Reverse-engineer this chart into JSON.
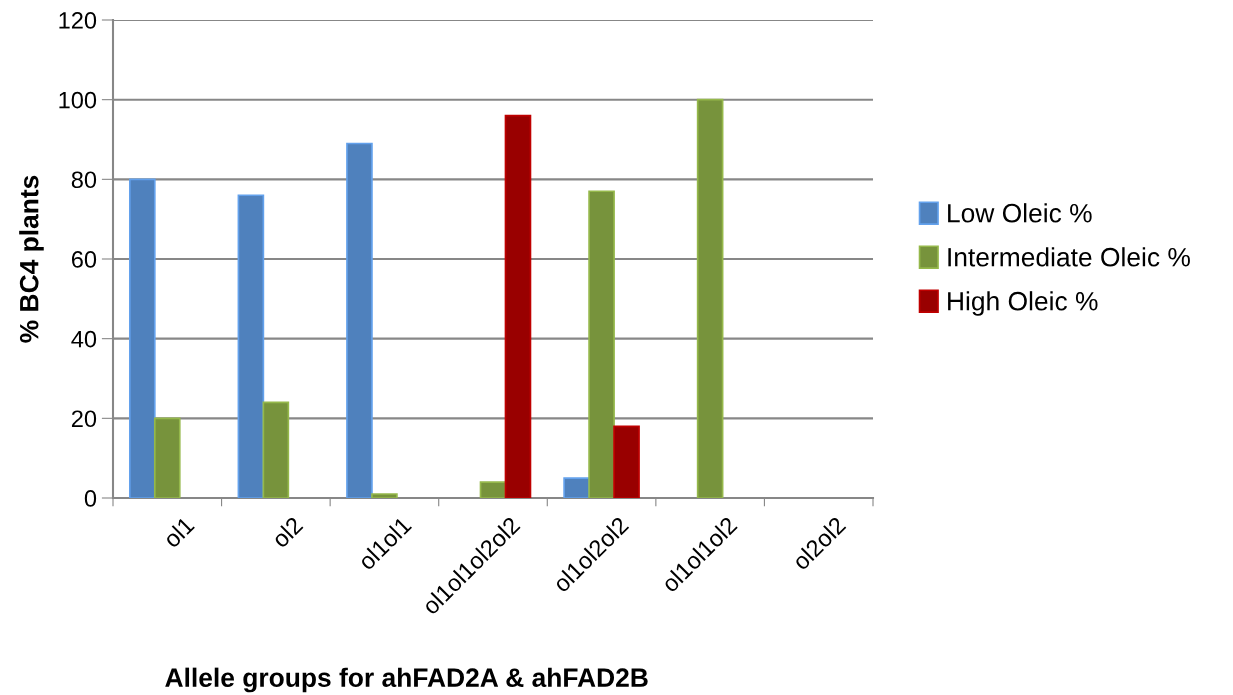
{
  "chart_data": {
    "type": "bar",
    "xlabel": "Allele groups for ahFAD2A & ahFAD2B",
    "ylabel": "% BC4 plants",
    "categories": [
      "ol1",
      "ol2",
      "ol1ol1",
      "ol1ol1ol2ol2",
      "ol1ol2ol2",
      "ol1ol1ol2",
      "ol2ol2"
    ],
    "series": [
      {
        "name": "Low Oleic %",
        "color": "#4f81bd",
        "values": [
          80,
          76,
          89,
          null,
          5,
          null,
          null
        ]
      },
      {
        "name": "Intermediate Oleic %",
        "color": "#77933c",
        "values": [
          20,
          24,
          1,
          4,
          77,
          100,
          null
        ]
      },
      {
        "name": "High Oleic %",
        "color": "#990000",
        "values": [
          null,
          null,
          null,
          96,
          18,
          null,
          null
        ]
      }
    ],
    "ylim": [
      0,
      120
    ],
    "yticks": [
      0,
      20,
      40,
      60,
      80,
      100,
      120
    ],
    "grid": "y",
    "legend": "right"
  }
}
